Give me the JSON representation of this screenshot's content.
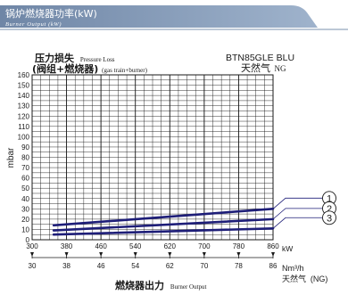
{
  "header": {
    "title": "锅炉燃烧器功率(kW)",
    "subtitle": "Burner Output (kW)"
  },
  "colors": {
    "header_bg": "#7a90ad",
    "header_text": "#ffffff",
    "grid": "#1a1a1a",
    "series_line": "#1e1e78",
    "text": "#1a1a1a"
  },
  "chart_data": {
    "type": "line",
    "title_cn": "压力损失",
    "title_en": "Pressure Loss",
    "subtitle_cn": "(阀组+燃烧器)",
    "subtitle_en": "(gas train+burner)",
    "model": "BTN85GLE BLU",
    "fuel_cn": "天然气",
    "fuel_en": "NG",
    "ylabel": "mbar",
    "xlabel_cn": "燃烧器出力",
    "xlabel_en": "Burner Output",
    "x_unit": "kW",
    "x2_unit": "Nm³/h",
    "x2_label_cn": "天然气",
    "x2_label_en": "(NG)",
    "xlim": [
      300,
      860
    ],
    "ylim": [
      0,
      160
    ],
    "x_ticks": [
      300,
      380,
      460,
      540,
      620,
      700,
      780,
      860
    ],
    "x2_ticks": [
      "30",
      "38",
      "46",
      "54",
      "62",
      "70",
      "78",
      "86"
    ],
    "y_ticks": [
      0,
      10,
      20,
      30,
      40,
      50,
      60,
      70,
      80,
      90,
      100,
      110,
      120,
      130,
      140,
      150,
      160
    ],
    "grid": true,
    "series": [
      {
        "name": "1",
        "x": [
          350,
          860
        ],
        "y": [
          14,
          30
        ]
      },
      {
        "name": "2",
        "x": [
          350,
          860
        ],
        "y": [
          9,
          20
        ]
      },
      {
        "name": "3",
        "x": [
          350,
          860
        ],
        "y": [
          5,
          11
        ]
      }
    ]
  }
}
